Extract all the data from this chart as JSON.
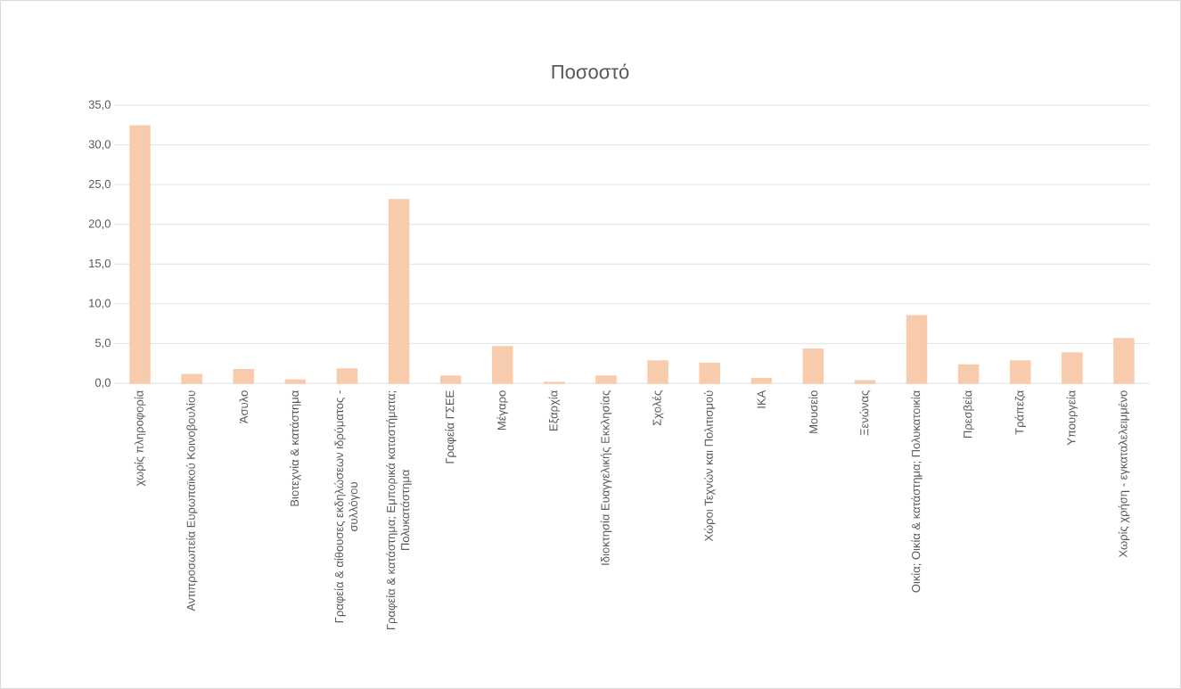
{
  "chart_data": {
    "type": "bar",
    "title": "Ποσοστό",
    "categories": [
      "χωρίς πληροφορία",
      "Αντιπροσωπεία Ευρωπαϊκού Κοινοβουλίου",
      "Άσυλο",
      "Βιοτεχνία & κατάστημα",
      "Γραφεία & αίθουσες εκδηλώσεων ιδρύματος - συλλόγου",
      "Γραφεία & κατάστημα; Εμπορικά καταστήματα; Πολυκατάστημα",
      "Γραφεία ΓΣΕΕ",
      "Μέγαρο",
      "Εξαρχία",
      "Ιδιοκτησία Ευαγγελικής Εκκλησίας",
      "Σχολές",
      "Χώροι Τεχνών και Πολιτισμού",
      "ΙΚΑ",
      "Μουσείο",
      "Ξενώνας",
      "Οικία; Οικία & κατάστημα; Πολυκατοικία",
      "Πρεσβεία",
      "Τράπεζα",
      "Υπουργεία",
      "Χωρίς χρήση - εγκαταλελειμμένο"
    ],
    "values": [
      32.4,
      1.1,
      1.7,
      0.4,
      1.8,
      23.1,
      0.9,
      4.6,
      0.1,
      0.9,
      2.8,
      2.5,
      0.6,
      4.3,
      0.3,
      8.5,
      2.3,
      2.8,
      3.8,
      5.6
    ],
    "color": "#f8cbad",
    "ylim": [
      0,
      35
    ],
    "yticks": [
      {
        "value": 0,
        "label": "0,0"
      },
      {
        "value": 5,
        "label": "5,0"
      },
      {
        "value": 10,
        "label": "10,0"
      },
      {
        "value": 15,
        "label": "15,0"
      },
      {
        "value": 20,
        "label": "20,0"
      },
      {
        "value": 25,
        "label": "25,0"
      },
      {
        "value": 30,
        "label": "30,0"
      },
      {
        "value": 35,
        "label": "35,0"
      }
    ],
    "grid": "y"
  }
}
